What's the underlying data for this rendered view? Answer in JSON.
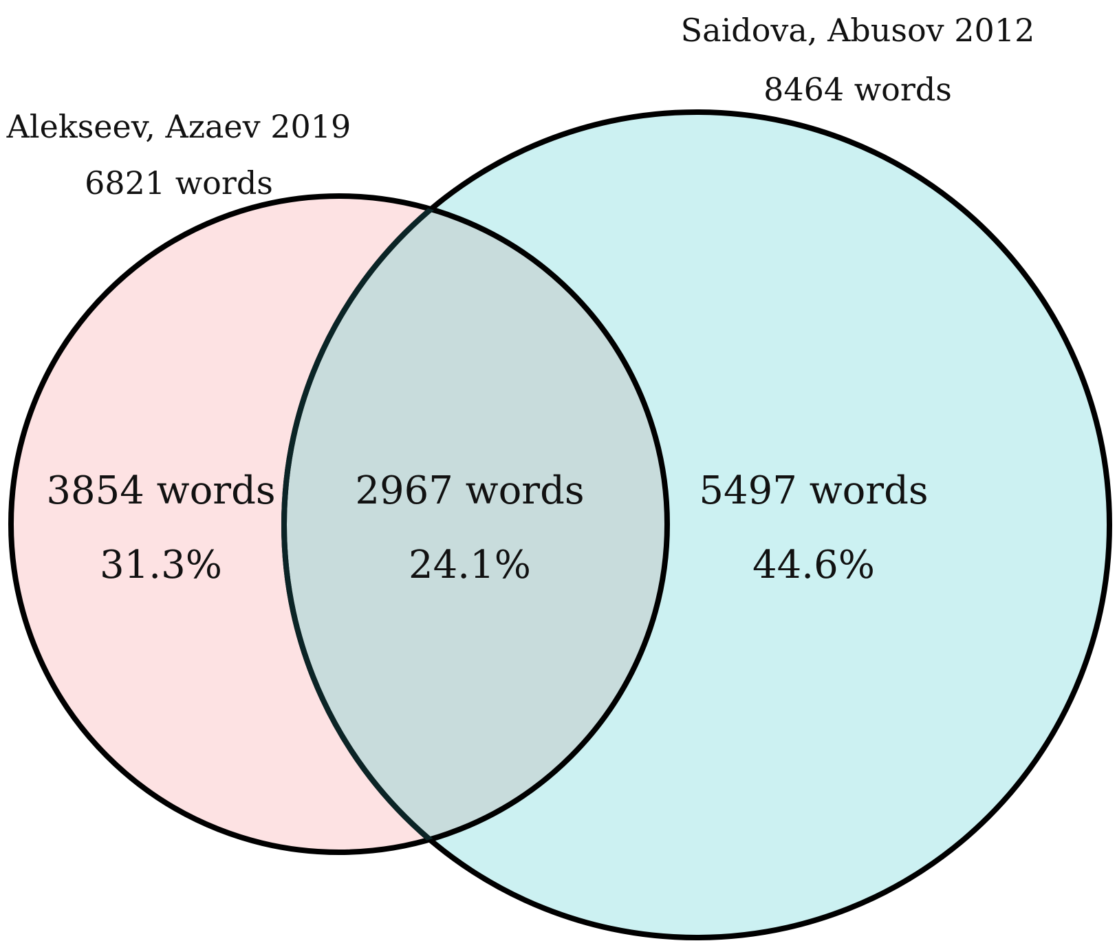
{
  "sets": [
    {
      "id": "left",
      "name": "Alekseev, Azaev 2019",
      "total": "6821 words",
      "fill": "#fde2e3",
      "stroke": "#000000"
    },
    {
      "id": "right",
      "name": "Saidova, Abusov 2012",
      "total": "8464 words",
      "fill": "#ccf1f2",
      "stroke": "#000000"
    }
  ],
  "regions": {
    "left_only": {
      "count": "3854 words",
      "percent": "31.3%"
    },
    "overlap": {
      "count": "2967 words",
      "percent": "24.1%",
      "fill": "#c8dcdc"
    },
    "right_only": {
      "count": "5497 words",
      "percent": "44.6%"
    }
  }
}
